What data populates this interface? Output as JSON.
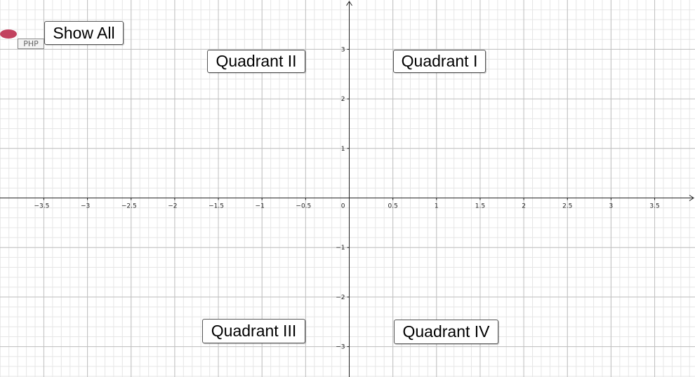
{
  "logo": "PHP",
  "buttons": [
    "Show All",
    "Quadrant I",
    "Quadrant II",
    "Quadrant III",
    "Quadrant IV"
  ],
  "axes": {
    "origin_label": "0",
    "xticks": [
      {
        "value": -3.5,
        "label": "−3.5"
      },
      {
        "value": -3,
        "label": "−3"
      },
      {
        "value": -2.5,
        "label": "−2.5"
      },
      {
        "value": -2,
        "label": "−2"
      },
      {
        "value": -1.5,
        "label": "−1.5"
      },
      {
        "value": -1,
        "label": "−1"
      },
      {
        "value": -0.5,
        "label": "−0.5"
      },
      0.5,
      1,
      1.5,
      2,
      2.5,
      3,
      3.5
    ],
    "yticks": [
      3,
      2,
      1,
      {
        "value": -1,
        "label": "−1"
      },
      {
        "value": -2,
        "label": "−2"
      },
      {
        "value": -3,
        "label": "−3"
      }
    ]
  }
}
